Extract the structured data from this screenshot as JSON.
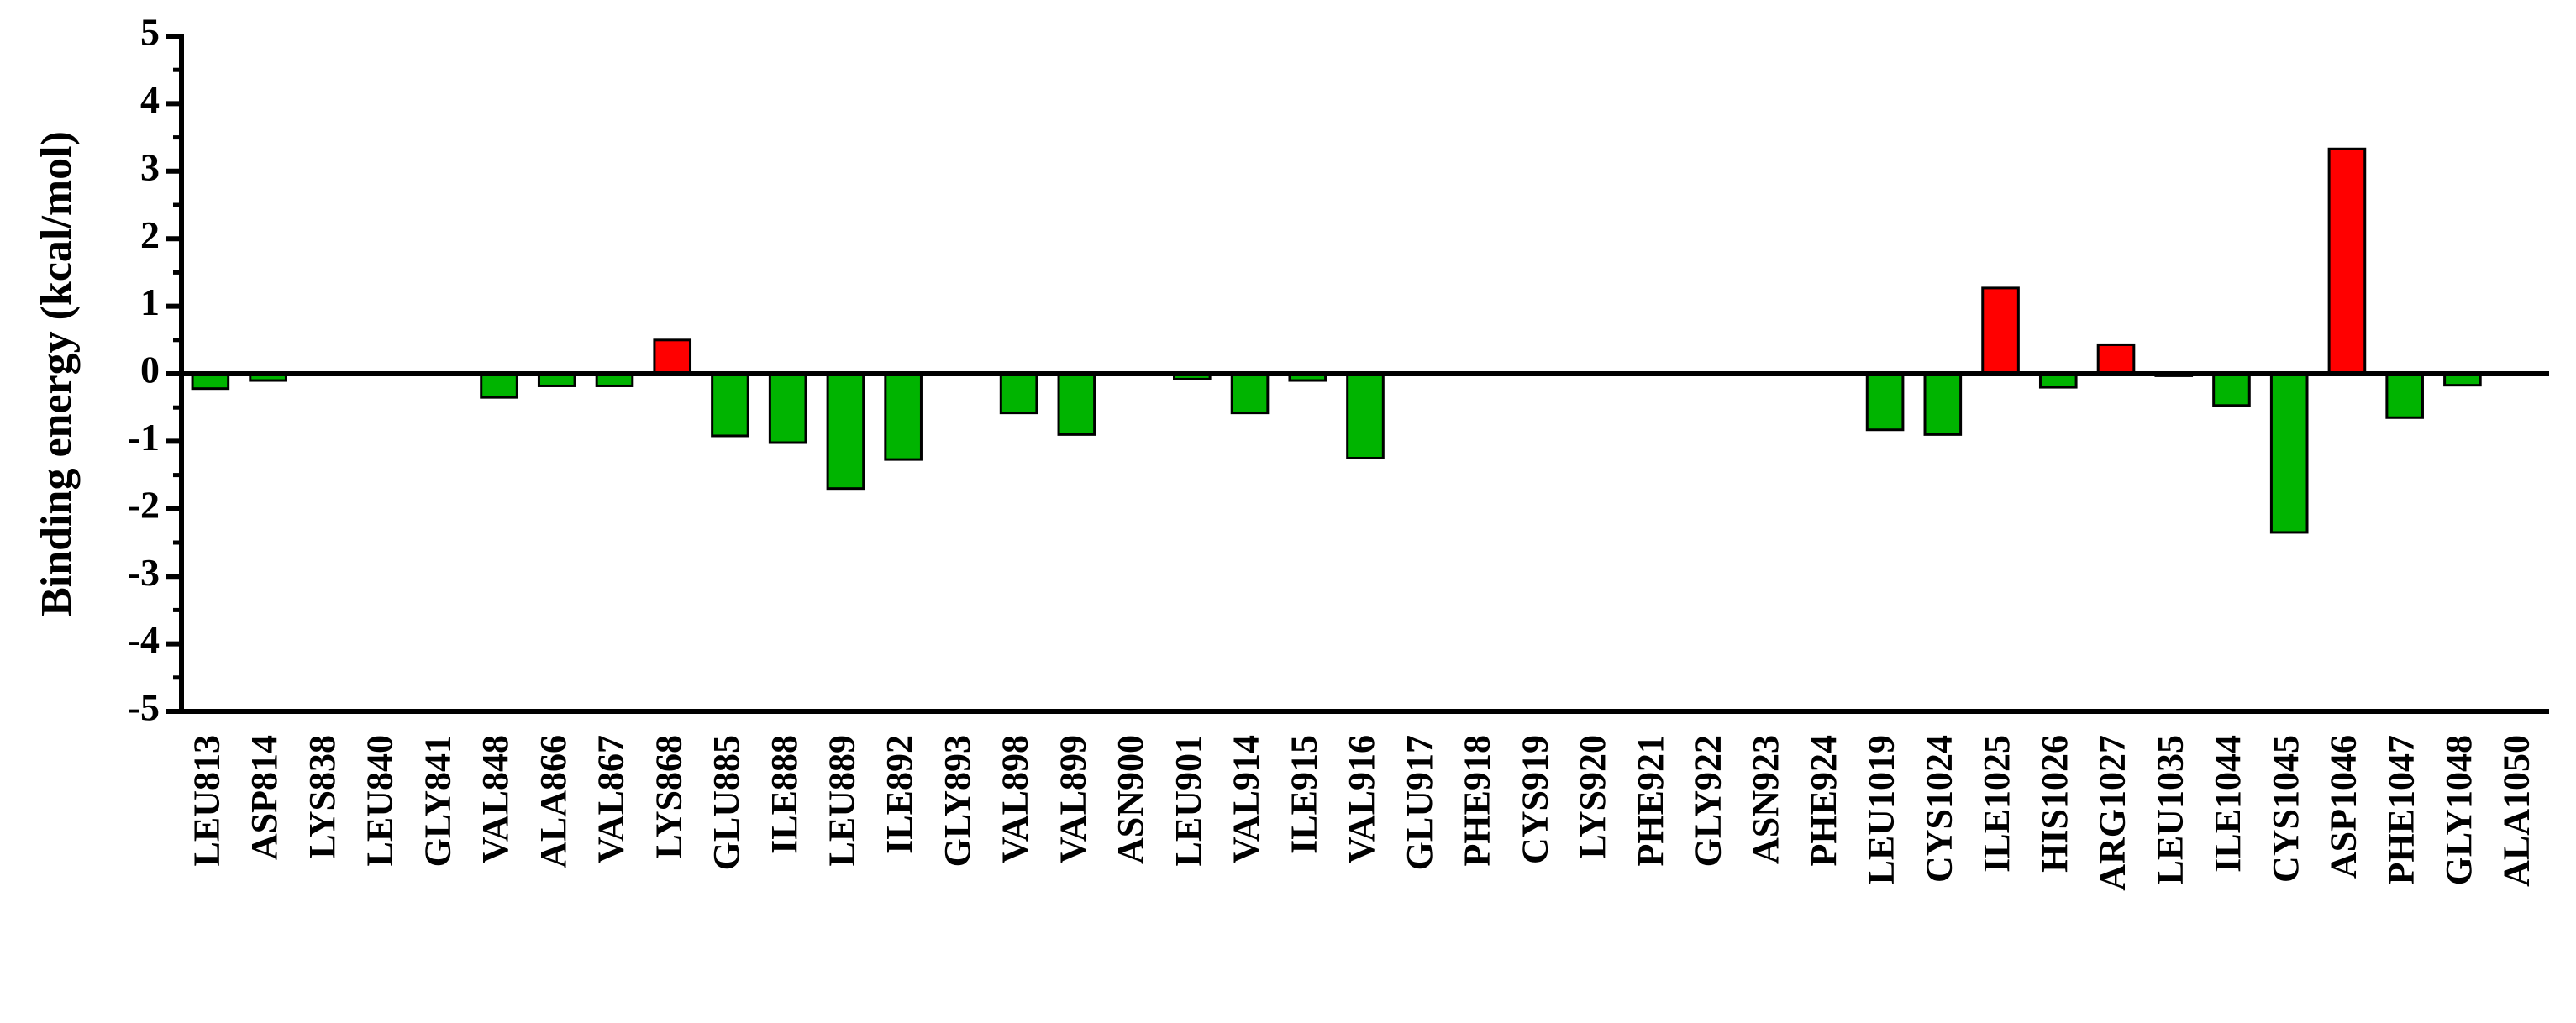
{
  "chart_data": {
    "type": "bar",
    "ylabel": "Binding energy (kcal/mol)",
    "categories": [
      "LEU813",
      "ASP814",
      "LYS838",
      "LEU840",
      "GLY841",
      "VAL848",
      "ALA866",
      "VAL867",
      "LYS868",
      "GLU885",
      "ILE888",
      "LEU889",
      "ILE892",
      "GLY893",
      "VAL898",
      "VAL899",
      "ASN900",
      "LEU901",
      "VAL914",
      "ILE915",
      "VAL916",
      "GLU917",
      "PHE918",
      "CYS919",
      "LYS920",
      "PHE921",
      "GLY922",
      "ASN923",
      "PHE924",
      "LEU1019",
      "CYS1024",
      "ILE1025",
      "HIS1026",
      "ARG1027",
      "LEU1035",
      "ILE1044",
      "CYS1045",
      "ASP1046",
      "PHE1047",
      "GLY1048",
      "ALA1050"
    ],
    "values": [
      -0.22,
      -0.1,
      0,
      0,
      0,
      -0.35,
      -0.18,
      -0.18,
      0.5,
      -0.92,
      -1.02,
      -1.7,
      -1.27,
      0,
      -0.58,
      -0.9,
      0,
      -0.08,
      -0.58,
      -0.1,
      -1.25,
      0,
      0,
      0,
      0,
      0,
      0,
      0,
      0,
      -0.83,
      -0.9,
      1.27,
      -0.2,
      0.43,
      -0.03,
      -0.47,
      -2.35,
      3.33,
      -0.65,
      -0.17,
      0
    ],
    "colors": [
      "#00b400",
      "#00b400",
      "#00b400",
      "#00b400",
      "#00b400",
      "#00b400",
      "#00b400",
      "#00b400",
      "#ff0000",
      "#00b400",
      "#00b400",
      "#00b400",
      "#00b400",
      "#00b400",
      "#00b400",
      "#00b400",
      "#00b400",
      "#00b400",
      "#00b400",
      "#00b400",
      "#00b400",
      "#00b400",
      "#00b400",
      "#00b400",
      "#00b400",
      "#00b400",
      "#00b400",
      "#00b400",
      "#00b400",
      "#00b400",
      "#00b400",
      "#ff0000",
      "#00b400",
      "#ff0000",
      "#00b400",
      "#00b400",
      "#00b400",
      "#ff0000",
      "#00b400",
      "#00b400",
      "#00b400"
    ],
    "ylim": [
      -5,
      5
    ],
    "yticks": [
      -5,
      -4,
      -3,
      -2,
      -1,
      0,
      1,
      2,
      3,
      4,
      5
    ],
    "minor_yticks": [
      -4.5,
      -3.5,
      -2.5,
      -1.5,
      -0.5,
      0.5,
      1.5,
      2.5,
      3.5,
      4.5
    ],
    "grid": false
  }
}
